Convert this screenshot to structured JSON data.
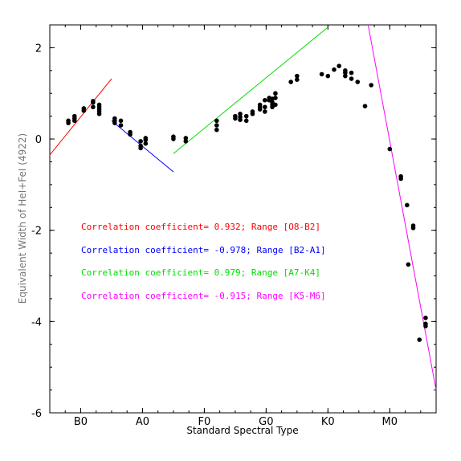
{
  "chart_data": {
    "type": "scatter",
    "xlabel": "Standard Spectral Type",
    "ylabel": "Equivalent Width of HeI+FeI (4922)",
    "xlim": [
      -0.5,
      5.75
    ],
    "ylim": [
      -6,
      2.5
    ],
    "x_tick_positions": [
      0,
      1,
      2,
      3,
      4,
      5
    ],
    "x_tick_labels": [
      "B0",
      "A0",
      "F0",
      "G0",
      "K0",
      "M0"
    ],
    "y_ticks": [
      -6,
      -4,
      -2,
      0,
      2
    ],
    "y_tick_labels": [
      "-6",
      "-4",
      "-2",
      "0",
      "2"
    ],
    "points": [
      {
        "x": -0.2,
        "y": 0.35
      },
      {
        "x": -0.2,
        "y": 0.4
      },
      {
        "x": -0.1,
        "y": 0.4
      },
      {
        "x": -0.1,
        "y": 0.45
      },
      {
        "x": -0.1,
        "y": 0.5
      },
      {
        "x": 0.05,
        "y": 0.62
      },
      {
        "x": 0.05,
        "y": 0.67
      },
      {
        "x": 0.2,
        "y": 0.7
      },
      {
        "x": 0.2,
        "y": 0.83
      },
      {
        "x": 0.2,
        "y": 0.8
      },
      {
        "x": 0.3,
        "y": 0.55
      },
      {
        "x": 0.3,
        "y": 0.6
      },
      {
        "x": 0.3,
        "y": 0.65
      },
      {
        "x": 0.3,
        "y": 0.7
      },
      {
        "x": 0.3,
        "y": 0.75
      },
      {
        "x": 0.55,
        "y": 0.35
      },
      {
        "x": 0.55,
        "y": 0.4
      },
      {
        "x": 0.55,
        "y": 0.45
      },
      {
        "x": 0.65,
        "y": 0.3
      },
      {
        "x": 0.65,
        "y": 0.4
      },
      {
        "x": 0.8,
        "y": 0.1
      },
      {
        "x": 0.8,
        "y": 0.15
      },
      {
        "x": 0.97,
        "y": -0.05
      },
      {
        "x": 0.97,
        "y": -0.15
      },
      {
        "x": 0.97,
        "y": -0.2
      },
      {
        "x": 1.05,
        "y": -0.1
      },
      {
        "x": 1.05,
        "y": -0.02
      },
      {
        "x": 1.05,
        "y": 0.02
      },
      {
        "x": 1.5,
        "y": 0.0
      },
      {
        "x": 1.5,
        "y": 0.05
      },
      {
        "x": 1.7,
        "y": -0.05
      },
      {
        "x": 1.7,
        "y": 0.02
      },
      {
        "x": 2.2,
        "y": 0.2
      },
      {
        "x": 2.2,
        "y": 0.3
      },
      {
        "x": 2.2,
        "y": 0.4
      },
      {
        "x": 2.5,
        "y": 0.45
      },
      {
        "x": 2.5,
        "y": 0.5
      },
      {
        "x": 2.58,
        "y": 0.42
      },
      {
        "x": 2.58,
        "y": 0.48
      },
      {
        "x": 2.58,
        "y": 0.55
      },
      {
        "x": 2.68,
        "y": 0.4
      },
      {
        "x": 2.68,
        "y": 0.5
      },
      {
        "x": 2.78,
        "y": 0.55
      },
      {
        "x": 2.78,
        "y": 0.6
      },
      {
        "x": 2.9,
        "y": 0.65
      },
      {
        "x": 2.9,
        "y": 0.7
      },
      {
        "x": 2.9,
        "y": 0.75
      },
      {
        "x": 2.98,
        "y": 0.6
      },
      {
        "x": 2.98,
        "y": 0.7
      },
      {
        "x": 2.98,
        "y": 0.85
      },
      {
        "x": 3.05,
        "y": 0.85
      },
      {
        "x": 3.05,
        "y": 0.9
      },
      {
        "x": 3.1,
        "y": 0.7
      },
      {
        "x": 3.1,
        "y": 0.75
      },
      {
        "x": 3.1,
        "y": 0.8
      },
      {
        "x": 3.1,
        "y": 0.88
      },
      {
        "x": 3.15,
        "y": 0.75
      },
      {
        "x": 3.15,
        "y": 0.9
      },
      {
        "x": 3.15,
        "y": 1.0
      },
      {
        "x": 3.4,
        "y": 1.25
      },
      {
        "x": 3.5,
        "y": 1.3
      },
      {
        "x": 3.5,
        "y": 1.38
      },
      {
        "x": 3.9,
        "y": 1.42
      },
      {
        "x": 4.0,
        "y": 1.38
      },
      {
        "x": 4.1,
        "y": 1.52
      },
      {
        "x": 4.18,
        "y": 1.6
      },
      {
        "x": 4.28,
        "y": 1.38
      },
      {
        "x": 4.28,
        "y": 1.45
      },
      {
        "x": 4.28,
        "y": 1.5
      },
      {
        "x": 4.38,
        "y": 1.32
      },
      {
        "x": 4.38,
        "y": 1.45
      },
      {
        "x": 4.48,
        "y": 1.25
      },
      {
        "x": 4.6,
        "y": 0.72
      },
      {
        "x": 4.7,
        "y": 1.18
      },
      {
        "x": 5.0,
        "y": -0.22
      },
      {
        "x": 5.18,
        "y": -0.82
      },
      {
        "x": 5.18,
        "y": -0.87
      },
      {
        "x": 5.28,
        "y": -1.45
      },
      {
        "x": 5.38,
        "y": -1.9
      },
      {
        "x": 5.38,
        "y": -1.95
      },
      {
        "x": 5.3,
        "y": -2.75
      },
      {
        "x": 5.48,
        "y": -4.4
      },
      {
        "x": 5.58,
        "y": -3.92
      },
      {
        "x": 5.58,
        "y": -4.05
      },
      {
        "x": 5.58,
        "y": -4.1
      }
    ],
    "fit_lines": [
      {
        "color": "#ff0000",
        "x1": -0.5,
        "y1": -0.35,
        "x2": 0.5,
        "y2": 1.32,
        "label": "Correlation coefficient= 0.932; Range [O8-B2]"
      },
      {
        "color": "#0000ff",
        "x1": 0.5,
        "y1": 0.4,
        "x2": 1.5,
        "y2": -0.72,
        "label": "Correlation coefficient= -0.978; Range [B2-A1]"
      },
      {
        "color": "#00dd00",
        "x1": 1.5,
        "y1": -0.32,
        "x2": 4.0,
        "y2": 2.45,
        "label": "Correlation coefficient= 0.979; Range [A7-K4]"
      },
      {
        "color": "#ff00ff",
        "x1": 4.65,
        "y1": 2.5,
        "x2": 5.75,
        "y2": -5.5,
        "label": "Correlation coefficient= -0.915; Range [K5-M6]"
      }
    ]
  }
}
